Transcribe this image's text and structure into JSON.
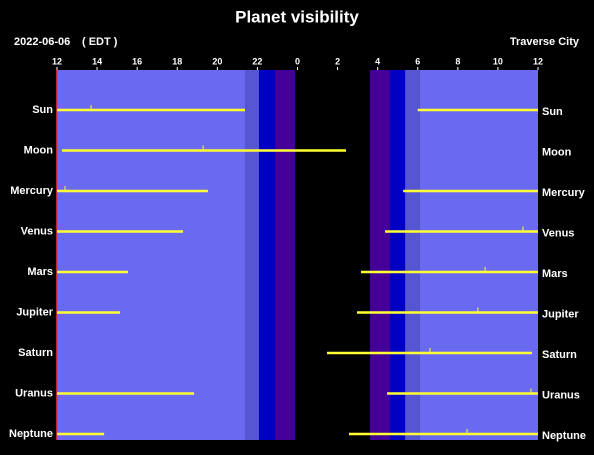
{
  "chart_data": {
    "type": "timeline",
    "title": "Planet visibility",
    "date": "2022-06-06",
    "timezone": "( EDT )",
    "location": "Traverse City",
    "xlim": [
      12,
      36
    ],
    "xticks": [
      12,
      14,
      16,
      18,
      20,
      22,
      {
        "value": 24,
        "label": "0"
      },
      {
        "value": 26,
        "label": "2"
      },
      {
        "value": 28,
        "label": "4"
      },
      {
        "value": 30,
        "label": "6"
      },
      {
        "value": 32,
        "label": "8"
      },
      {
        "value": 34,
        "label": "10"
      },
      {
        "value": 36,
        "label": "12"
      }
    ],
    "line_color": "#ffff33",
    "bands": [
      {
        "start": 12,
        "end": 21.38,
        "color": "#6a6af0"
      },
      {
        "start": 21.38,
        "end": 22.08,
        "color": "#5656d2"
      },
      {
        "start": 22.08,
        "end": 22.88,
        "color": "#0000c4"
      },
      {
        "start": 22.88,
        "end": 23.88,
        "color": "#440099"
      },
      {
        "start": 23.88,
        "end": 27.62,
        "color": "#000000"
      },
      {
        "start": 27.62,
        "end": 28.62,
        "color": "#440099"
      },
      {
        "start": 28.62,
        "end": 29.37,
        "color": "#0000c4"
      },
      {
        "start": 29.37,
        "end": 30.11,
        "color": "#5656d2"
      },
      {
        "start": 30.11,
        "end": 36,
        "color": "#6a6af0"
      }
    ],
    "rows": [
      {
        "name": "Sun",
        "intervals": [
          [
            12,
            21.38
          ],
          [
            30.0,
            36
          ]
        ],
        "transit": 13.7
      },
      {
        "name": "Moon",
        "intervals": [
          [
            12.25,
            26.42
          ]
        ],
        "transit": 19.29
      },
      {
        "name": "Mercury",
        "intervals": [
          [
            12,
            19.53
          ],
          [
            29.27,
            36
          ]
        ],
        "transit": 12.4
      },
      {
        "name": "Venus",
        "intervals": [
          [
            12,
            18.29
          ],
          [
            28.37,
            36
          ]
        ],
        "transit": 35.25
      },
      {
        "name": "Mars",
        "intervals": [
          [
            12,
            15.54
          ],
          [
            27.17,
            36
          ]
        ],
        "transit": 33.36
      },
      {
        "name": "Jupiter",
        "intervals": [
          [
            12,
            15.14
          ],
          [
            26.97,
            36
          ]
        ],
        "transit": 33.0
      },
      {
        "name": "Saturn",
        "intervals": [
          [
            25.47,
            35.7
          ]
        ],
        "transit": 30.61
      },
      {
        "name": "Uranus",
        "intervals": [
          [
            12,
            18.84
          ],
          [
            28.47,
            36
          ]
        ],
        "transit": 35.65
      },
      {
        "name": "Neptune",
        "intervals": [
          [
            12,
            14.35
          ],
          [
            26.57,
            36
          ]
        ],
        "transit": 32.46
      }
    ]
  }
}
